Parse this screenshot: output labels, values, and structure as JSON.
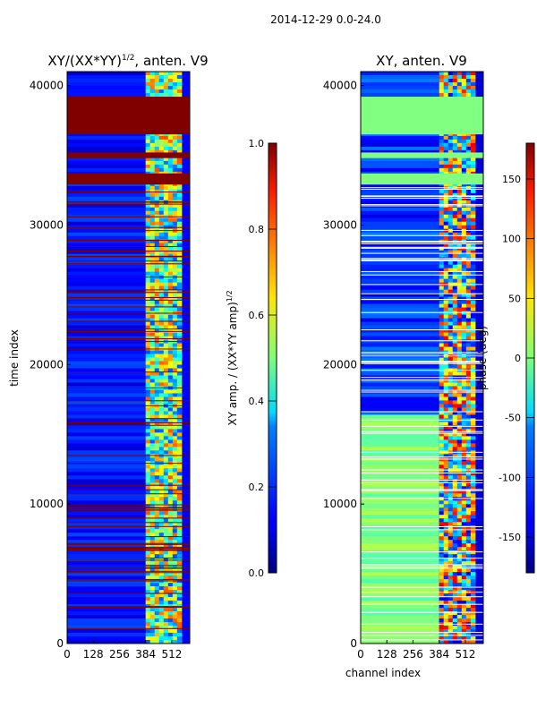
{
  "figure_title": "2014-12-29 0.0-24.0",
  "chart_data": [
    {
      "type": "heatmap",
      "title_main": "XY/(XX*YY)",
      "title_sup": "1/2",
      "title_suffix": ", anten. V9",
      "xlabel": "",
      "ylabel": "time index",
      "xlim": [
        0,
        600
      ],
      "ylim": [
        0,
        41000
      ],
      "xticks": [
        0,
        128,
        256,
        384,
        512
      ],
      "yticks": [
        0,
        10000,
        20000,
        30000,
        40000
      ],
      "colormap": "jet",
      "colorbar": {
        "label_main": "XY amp. / (XX*YY amp)",
        "label_sup": "1/2",
        "range": [
          0.0,
          1.0
        ],
        "ticks": [
          0.0,
          0.2,
          0.4,
          0.6,
          0.8,
          1.0
        ],
        "tick_labels": [
          "0.0",
          "0.2",
          "0.4",
          "0.6",
          "0.8",
          "1.0"
        ]
      },
      "bands": [
        {
          "y0": 36500,
          "y1": 39200,
          "value": 1.0
        },
        {
          "y0": 34800,
          "y1": 35200,
          "value": 1.0
        },
        {
          "y0": 32900,
          "y1": 33700,
          "value": 1.0
        }
      ],
      "active_channels": [
        384,
        560
      ],
      "active_value": 0.5,
      "background_value": 0.12
    },
    {
      "type": "heatmap",
      "title_main": "XY, anten. V9",
      "title_sup": "",
      "title_suffix": "",
      "xlabel": "channel index",
      "ylabel": "",
      "xlim": [
        0,
        600
      ],
      "ylim": [
        0,
        41000
      ],
      "xticks": [
        0,
        128,
        256,
        384,
        512
      ],
      "yticks": [
        0,
        10000,
        20000,
        30000,
        40000
      ],
      "colormap": "jet",
      "colorbar": {
        "label_main": "phase (deg)",
        "label_sup": "",
        "range": [
          -180,
          180
        ],
        "ticks": [
          -150,
          -100,
          -50,
          0,
          50,
          100,
          150
        ],
        "tick_labels": [
          "-150",
          "-100",
          "-50",
          "0",
          "50",
          "100",
          "150"
        ]
      },
      "bands": [
        {
          "y0": 36500,
          "y1": 39200,
          "value": 0
        },
        {
          "y0": 34800,
          "y1": 35200,
          "value": 0
        },
        {
          "y0": 32900,
          "y1": 33700,
          "value": 0
        }
      ],
      "active_channels": [
        384,
        560
      ],
      "active_value": 60,
      "background_value": -150
    }
  ]
}
